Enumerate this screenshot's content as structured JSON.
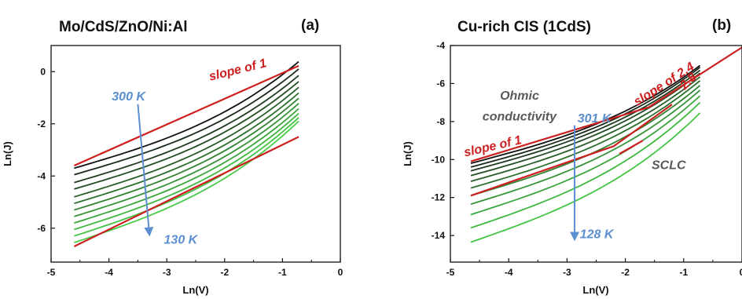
{
  "colors": {
    "red": "#cc1f1f",
    "blue": "#5b8fd1",
    "gray": "#595959",
    "axis": "#111111"
  },
  "chart_data": [
    {
      "type": "line",
      "title": "Mo/CdS/ZnO/Ni:Al",
      "panel_label": "(a)",
      "xlabel": "Ln(V)",
      "ylabel": "Ln(J)",
      "xlim": [
        -5,
        0
      ],
      "ylim": [
        -7.3,
        1
      ],
      "xticks": [
        -5,
        -4,
        -3,
        -2,
        -1,
        0
      ],
      "yticks": [
        0,
        -2,
        -4,
        -6
      ],
      "grid": false,
      "x_range": [
        -4.6,
        -0.72
      ],
      "temperature_range": [
        "300 K",
        "130 K"
      ],
      "families": [
        {
          "kind": "curve",
          "y_start": [
            -3.7,
            -3.95,
            -4.25,
            -4.5,
            -4.8,
            -5.05,
            -5.3,
            -5.55,
            -5.8,
            -6.05,
            -6.3,
            -6.55
          ],
          "y_end": [
            0.38,
            0.1,
            -0.15,
            -0.38,
            -0.6,
            -0.82,
            -1.02,
            -1.22,
            -1.42,
            -1.6,
            -1.76,
            -1.9
          ],
          "colors": [
            "#111111",
            "#1a2a1a",
            "#1f3b1f",
            "#234d23",
            "#285e28",
            "#2c702c",
            "#318231",
            "#369436",
            "#3ba63b",
            "#3fb83f",
            "#44c444",
            "#4acb4a"
          ]
        }
      ],
      "reference_lines": [
        {
          "x": [
            -4.6,
            -0.72
          ],
          "y": [
            -3.6,
            0.22
          ],
          "color": "#cc1f1f"
        },
        {
          "x": [
            -4.6,
            -0.72
          ],
          "y": [
            -6.7,
            -2.5
          ],
          "color": "#cc1f1f"
        }
      ],
      "annotations": [
        {
          "text": "slope of 1",
          "x": -2.25,
          "y": -0.35,
          "color": "#cc1f1f",
          "rotate": -14
        },
        {
          "text": "300 K",
          "x": -3.95,
          "y": -1.1,
          "color": "#5b8fd1",
          "rotate": 0
        },
        {
          "text": "130 K",
          "x": -3.05,
          "y": -6.6,
          "color": "#5b8fd1",
          "rotate": 0
        }
      ],
      "arrows": [
        {
          "x": [
            -3.5,
            -3.3
          ],
          "y": [
            -1.25,
            -6.25
          ],
          "color": "#5b8fd1"
        }
      ]
    },
    {
      "type": "line",
      "title": "Cu-rich CIS (1CdS)",
      "panel_label": "(b)",
      "xlabel": "Ln(V)",
      "ylabel": "Ln(J)",
      "xlim": [
        -5,
        0
      ],
      "ylim": [
        -15.4,
        -4
      ],
      "xticks": [
        -5,
        -4,
        -3,
        -2,
        -1,
        0
      ],
      "yticks": [
        -4,
        -6,
        -8,
        -10,
        -12,
        -14
      ],
      "grid": false,
      "x_range": [
        -4.65,
        -0.72
      ],
      "temperature_range": [
        "301 K",
        "128 K"
      ],
      "families": [
        {
          "kind": "curve",
          "y_start": [
            -10.2,
            -10.4,
            -10.6,
            -10.85,
            -11.15,
            -11.5,
            -11.9,
            -12.35,
            -12.9,
            -13.6,
            -14.35
          ],
          "y_end": [
            -5.05,
            -5.15,
            -5.3,
            -5.45,
            -5.65,
            -5.85,
            -6.1,
            -6.35,
            -6.65,
            -7.0,
            -7.55
          ],
          "colors": [
            "#111111",
            "#1a2a1a",
            "#1f3b1f",
            "#234d23",
            "#285e28",
            "#2c702c",
            "#318231",
            "#369436",
            "#3ba63b",
            "#3fb83f",
            "#44c444"
          ]
        }
      ],
      "reference_lines": [
        {
          "x": [
            -4.65,
            -1.6,
            0.05
          ],
          "y": [
            -10.1,
            -7.25,
            -4.0
          ],
          "color": "#cc1f1f"
        },
        {
          "x": [
            -4.65,
            -2.2,
            -1.2
          ],
          "y": [
            -11.9,
            -9.3,
            -7.1
          ],
          "color": "#cc1f1f"
        },
        {
          "x": [
            -2.1,
            -1.7
          ],
          "y": [
            -9.7,
            -9.0
          ],
          "color": "#cc1f1f"
        }
      ],
      "annotations": [
        {
          "text": "Ohmic",
          "x": -4.15,
          "y": -6.85,
          "color": "#595959",
          "rotate": 0
        },
        {
          "text": "conductivity",
          "x": -4.45,
          "y": -7.95,
          "color": "#595959",
          "rotate": 0
        },
        {
          "text": "301 K",
          "x": -2.82,
          "y": -8.05,
          "color": "#5b8fd1",
          "rotate": 0
        },
        {
          "text": "slope of 1",
          "x": -4.75,
          "y": -9.85,
          "color": "#cc1f1f",
          "rotate": -13
        },
        {
          "text": "slope of 2.4",
          "x": -1.8,
          "y": -7.2,
          "color": "#cc1f1f",
          "rotate": -33
        },
        {
          "text": "2.8",
          "x": -0.98,
          "y": -6.35,
          "color": "#cc1f1f",
          "rotate": -45
        },
        {
          "text": "SCLC",
          "x": -1.55,
          "y": -10.5,
          "color": "#595959",
          "rotate": 0
        },
        {
          "text": "128 K",
          "x": -2.78,
          "y": -14.15,
          "color": "#5b8fd1",
          "rotate": 0
        }
      ],
      "arrows": [
        {
          "x": [
            -2.87,
            -2.87
          ],
          "y": [
            -8.2,
            -14.2
          ],
          "color": "#5b8fd1"
        }
      ]
    }
  ]
}
